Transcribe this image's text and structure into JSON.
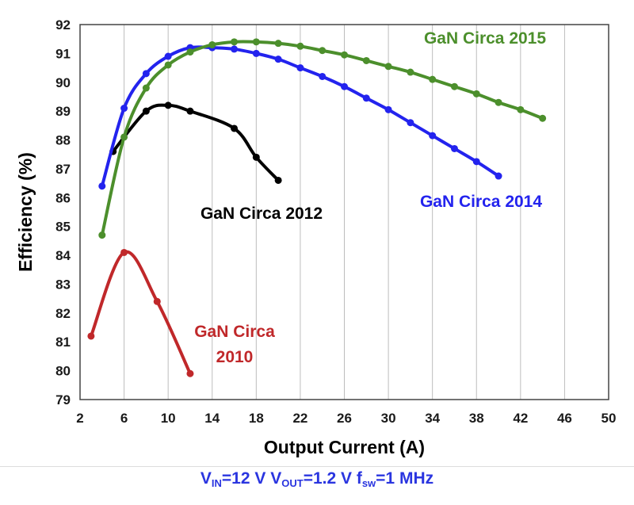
{
  "chart_data": {
    "type": "line",
    "title": "",
    "xlabel": "Output Current (A)",
    "ylabel": "Efficiency (%)",
    "xlim": [
      2,
      50
    ],
    "ylim": [
      79,
      92
    ],
    "xticks": [
      2,
      6,
      10,
      14,
      18,
      22,
      26,
      30,
      34,
      38,
      42,
      46,
      50
    ],
    "yticks": [
      79,
      80,
      81,
      82,
      83,
      84,
      85,
      86,
      87,
      88,
      89,
      90,
      91,
      92
    ],
    "grid": {
      "x": true,
      "y": false
    },
    "series": [
      {
        "name": "GaN Circa 2010",
        "label_lines": [
          "GaN Circa",
          "2010"
        ],
        "color": "#c0282a",
        "x": [
          3,
          6,
          9,
          12
        ],
        "y": [
          81.2,
          84.1,
          82.4,
          79.9
        ]
      },
      {
        "name": "GaN Circa 2012",
        "label_lines": [
          "GaN Circa 2012"
        ],
        "color": "#000000",
        "x": [
          5,
          8,
          10,
          12,
          16,
          18,
          20
        ],
        "y": [
          87.6,
          89.0,
          89.2,
          89.0,
          88.4,
          87.4,
          86.6
        ]
      },
      {
        "name": "GaN Circa 2014",
        "label_lines": [
          "GaN Circa 2014"
        ],
        "color": "#2323ee",
        "x": [
          4,
          6,
          8,
          10,
          12,
          14,
          16,
          18,
          20,
          22,
          24,
          26,
          28,
          30,
          32,
          34,
          36,
          38,
          40
        ],
        "y": [
          86.4,
          89.1,
          90.3,
          90.9,
          91.2,
          91.2,
          91.15,
          91.0,
          90.8,
          90.5,
          90.2,
          89.85,
          89.45,
          89.05,
          88.6,
          88.15,
          87.7,
          87.25,
          86.75
        ]
      },
      {
        "name": "GaN Circa 2015",
        "label_lines": [
          "GaN Circa 2015"
        ],
        "color": "#4c8f2c",
        "x": [
          4,
          6,
          8,
          10,
          12,
          14,
          16,
          18,
          20,
          22,
          24,
          26,
          28,
          30,
          32,
          34,
          36,
          38,
          40,
          42,
          44
        ],
        "y": [
          84.7,
          88.1,
          89.8,
          90.6,
          91.05,
          91.3,
          91.4,
          91.4,
          91.35,
          91.25,
          91.1,
          90.95,
          90.75,
          90.55,
          90.35,
          90.1,
          89.85,
          89.6,
          89.3,
          89.05,
          88.75
        ]
      }
    ],
    "caption": {
      "v": "V",
      "in_sub": "IN",
      "part1": "=12 V ",
      "v2": "V",
      "out_sub": "OUT",
      "part2": "=1.2 V ",
      "f": "f",
      "sw_sub": "sw",
      "part3": "=1 MHz"
    }
  }
}
